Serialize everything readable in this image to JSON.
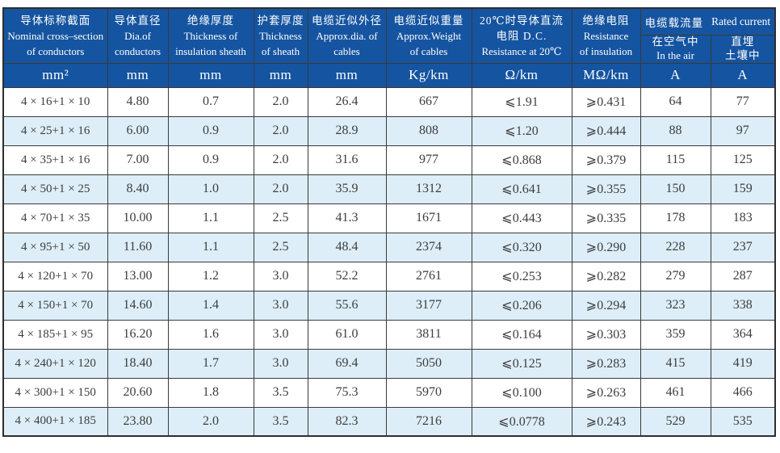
{
  "colors": {
    "header_blue": "#1554a0",
    "alt_row_blue": "#ddeef8",
    "border": "#3a3a3a",
    "body_text": "#3d3d3d",
    "header_text": "#ffffff"
  },
  "table": {
    "header_cols": [
      {
        "lines": [
          "导体标称截面",
          "Nominal cross–section",
          "of conductors"
        ],
        "unit": "mm²"
      },
      {
        "lines": [
          "导体直径",
          "Dia.of",
          "conductors"
        ],
        "unit": "mm"
      },
      {
        "lines": [
          "绝缘厚度",
          "Thickness of",
          "insulation sheath"
        ],
        "unit": "mm"
      },
      {
        "lines": [
          "护套厚度",
          "Thickness",
          "of sheath"
        ],
        "unit": "mm"
      },
      {
        "lines": [
          "电缆近似外径",
          "Approx.dia. of",
          "cables"
        ],
        "unit": "mm"
      },
      {
        "lines": [
          "电缆近似重量",
          "Approx.Weight",
          "of cables"
        ],
        "unit": "Kg/km"
      },
      {
        "lines": [
          "20℃时导体直流",
          "电阻 D.C.",
          "Resistance at 20℃"
        ],
        "unit": "Ω/km"
      },
      {
        "lines": [
          "绝缘电阻",
          "Resistance",
          "of insulation"
        ],
        "unit": "MΩ/km"
      }
    ],
    "group": {
      "title_zh": "电缆载流量",
      "title_en": "Rated current",
      "sub": [
        {
          "lines": [
            "在空气中",
            "In the air"
          ],
          "unit": "A"
        },
        {
          "lines": [
            "直埋",
            "土壤中"
          ],
          "unit": "A"
        }
      ]
    },
    "rows": [
      [
        "4 × 16+1 × 10",
        "4.80",
        "0.7",
        "2.0",
        "26.4",
        "667",
        "⩽1.91",
        "⩾0.431",
        "64",
        "77"
      ],
      [
        "4 × 25+1 × 16",
        "6.00",
        "0.9",
        "2.0",
        "28.9",
        "808",
        "⩽1.20",
        "⩾0.444",
        "88",
        "97"
      ],
      [
        "4 × 35+1 × 16",
        "7.00",
        "0.9",
        "2.0",
        "31.6",
        "977",
        "⩽0.868",
        "⩾0.379",
        "115",
        "125"
      ],
      [
        "4 × 50+1 × 25",
        "8.40",
        "1.0",
        "2.0",
        "35.9",
        "1312",
        "⩽0.641",
        "⩾0.355",
        "150",
        "159"
      ],
      [
        "4 × 70+1 × 35",
        "10.00",
        "1.1",
        "2.5",
        "41.3",
        "1671",
        "⩽0.443",
        "⩾0.335",
        "178",
        "183"
      ],
      [
        "4 × 95+1 × 50",
        "11.60",
        "1.1",
        "2.5",
        "48.4",
        "2374",
        "⩽0.320",
        "⩾0.290",
        "228",
        "237"
      ],
      [
        "4 × 120+1 × 70",
        "13.00",
        "1.2",
        "3.0",
        "52.2",
        "2761",
        "⩽0.253",
        "⩾0.282",
        "279",
        "287"
      ],
      [
        "4 × 150+1 × 70",
        "14.60",
        "1.4",
        "3.0",
        "55.6",
        "3177",
        "⩽0.206",
        "⩾0.294",
        "323",
        "338"
      ],
      [
        "4 × 185+1 × 95",
        "16.20",
        "1.6",
        "3.0",
        "61.0",
        "3811",
        "⩽0.164",
        "⩾0.303",
        "359",
        "364"
      ],
      [
        "4 × 240+1 × 120",
        "18.40",
        "1.7",
        "3.0",
        "69.4",
        "5050",
        "⩽0.125",
        "⩾0.283",
        "415",
        "419"
      ],
      [
        "4 × 300+1 × 150",
        "20.60",
        "1.8",
        "3.5",
        "75.3",
        "5970",
        "⩽0.100",
        "⩾0.263",
        "461",
        "466"
      ],
      [
        "4 × 400+1 × 185",
        "23.80",
        "2.0",
        "3.5",
        "82.3",
        "7216",
        "⩽0.0778",
        "⩾0.243",
        "529",
        "535"
      ]
    ]
  }
}
